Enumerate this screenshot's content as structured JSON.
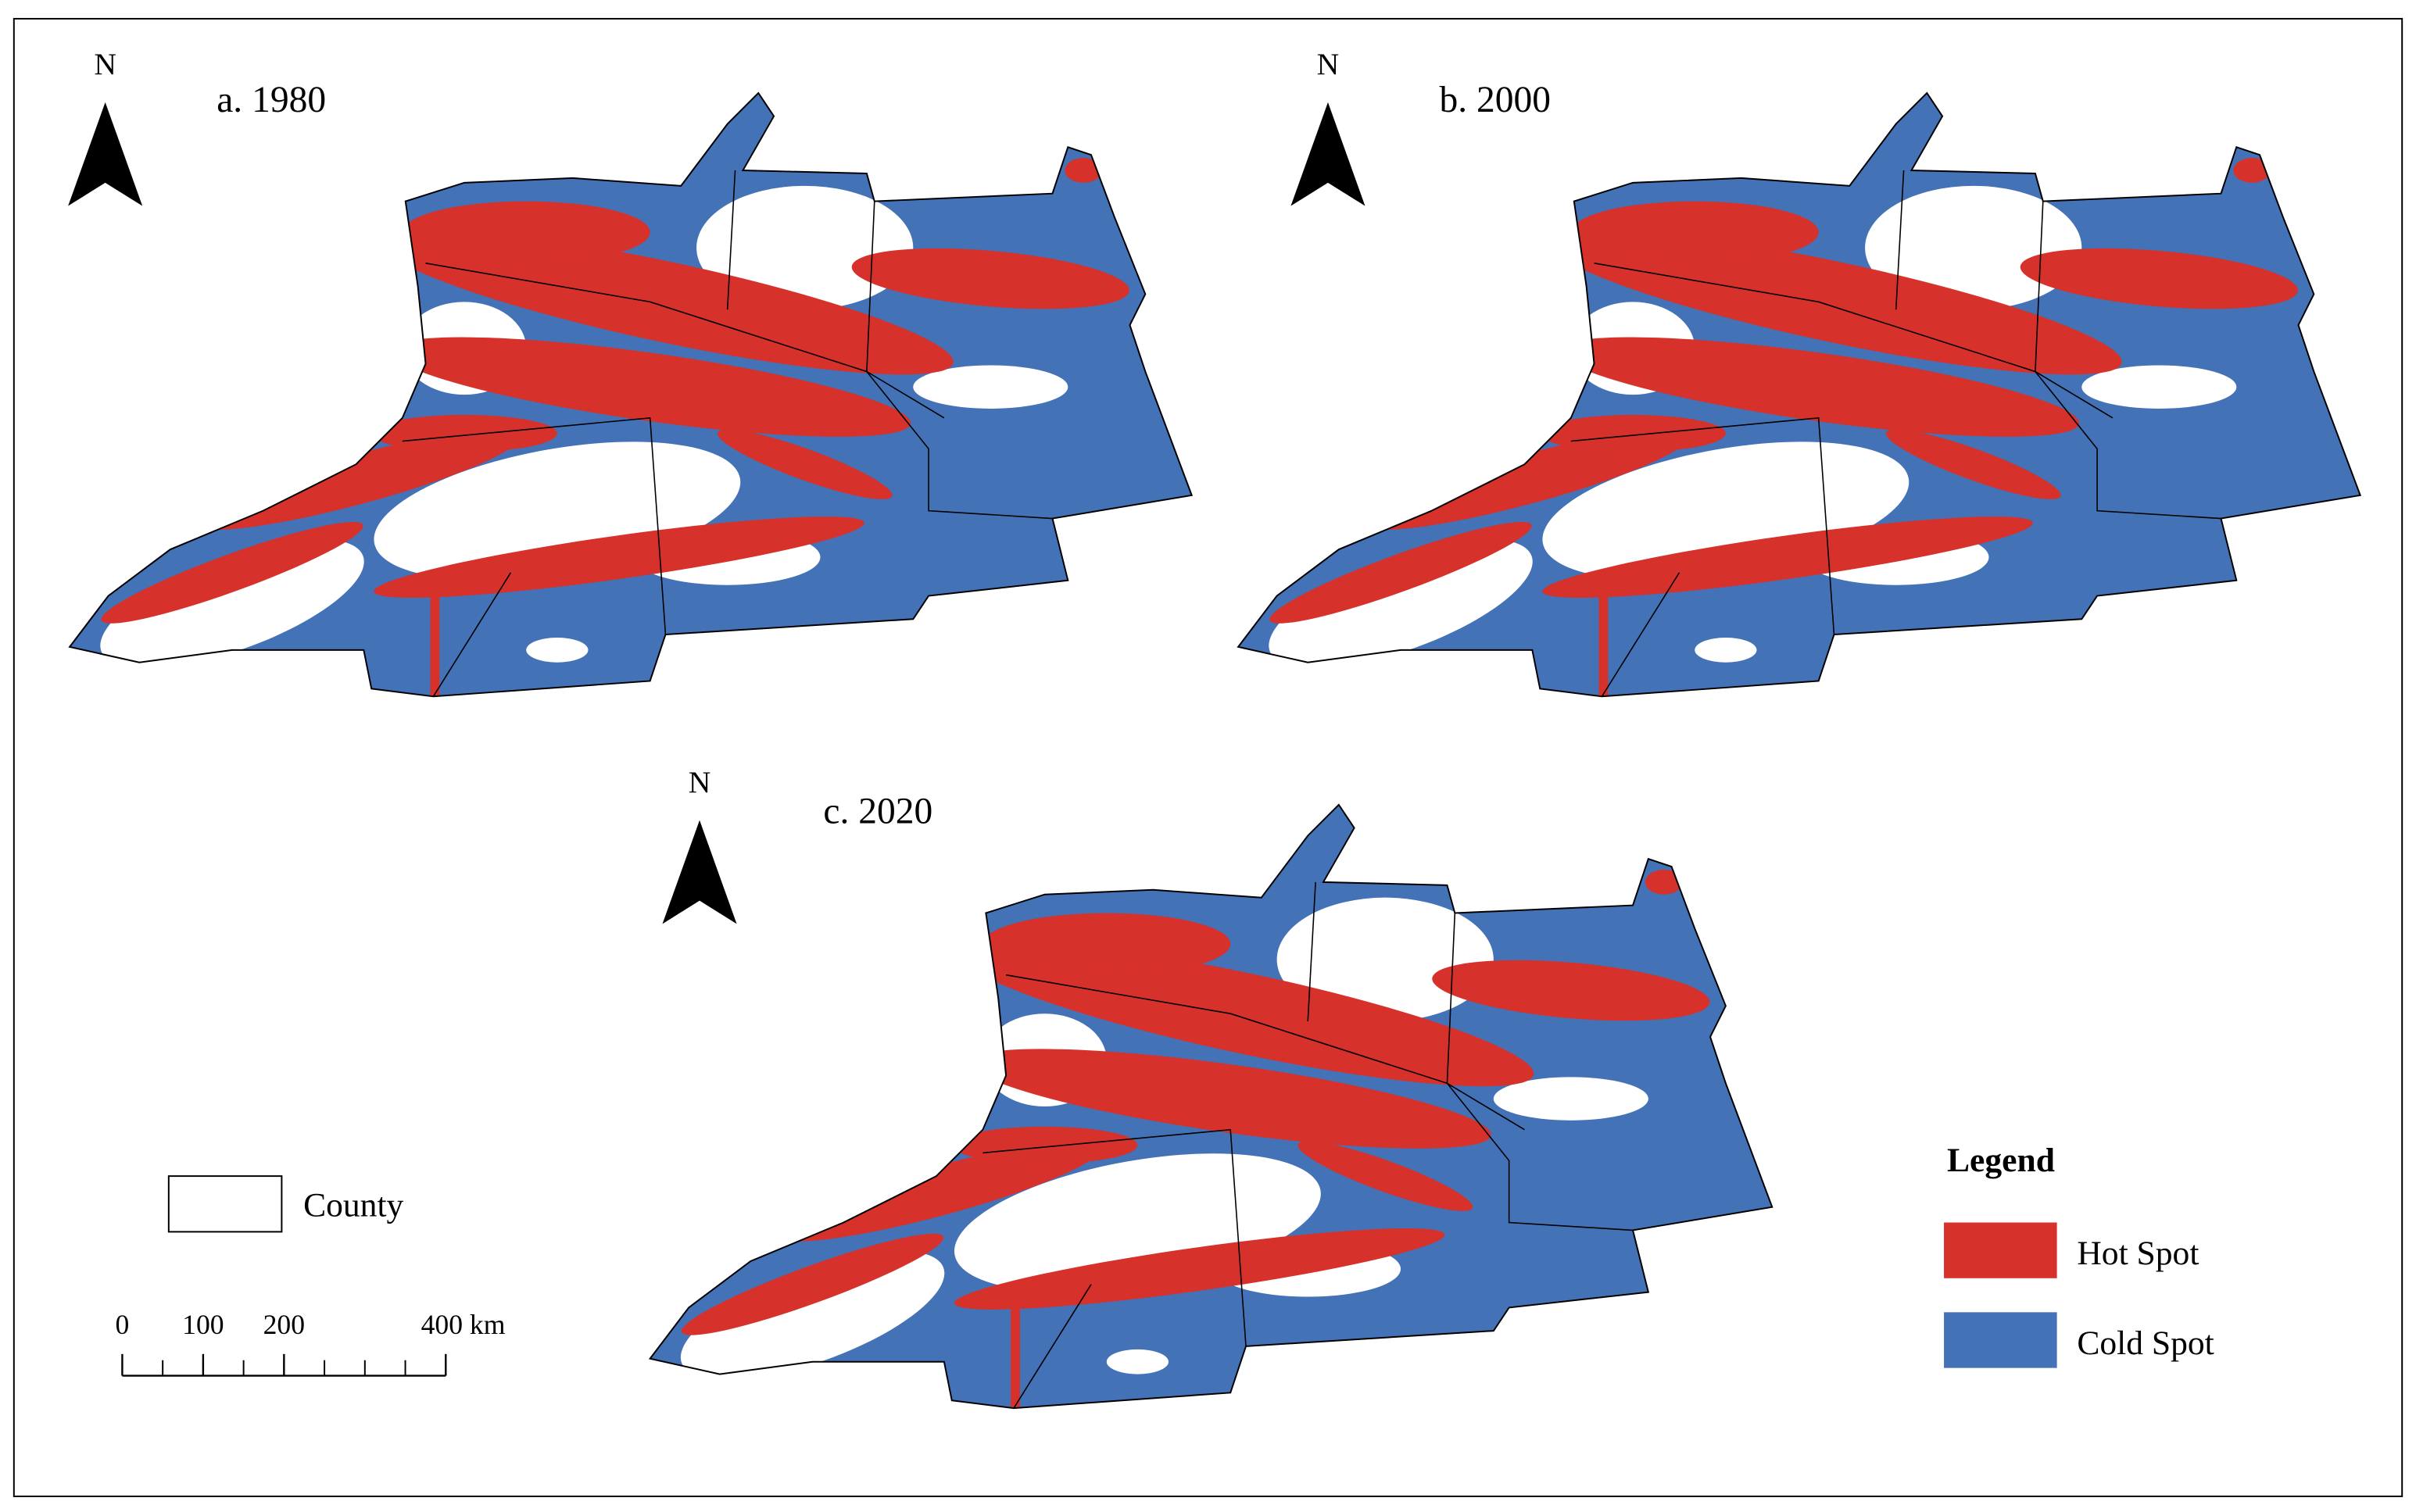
{
  "panels": [
    {
      "label": "a. 1980",
      "north": "N"
    },
    {
      "label": "b. 2000",
      "north": "N"
    },
    {
      "label": "c. 2020",
      "north": "N"
    }
  ],
  "legend": {
    "title": "Legend",
    "items": [
      {
        "label": "Hot Spot",
        "color": "#d7312b"
      },
      {
        "label": "Cold Spot",
        "color": "#4472b6"
      }
    ]
  },
  "county_legend": "County",
  "scale_bar": {
    "ticks": [
      {
        "value": 0,
        "label": "0"
      },
      {
        "value": 100,
        "label": "100"
      },
      {
        "value": 200,
        "label": "200"
      },
      {
        "value": 400,
        "label": "400 km"
      }
    ]
  }
}
